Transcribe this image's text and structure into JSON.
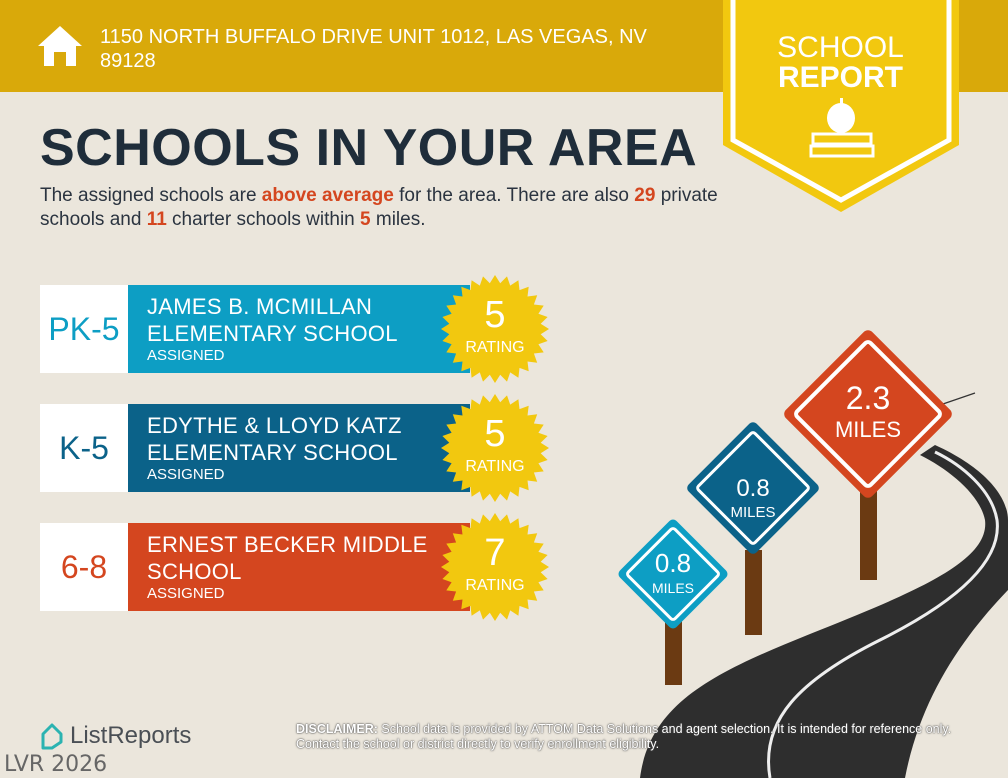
{
  "header": {
    "address": "1150 NORTH BUFFALO DRIVE UNIT 1012, LAS VEGAS, NV 89128",
    "icon": "home-icon"
  },
  "badge": {
    "line1": "SCHOOL",
    "line2": "REPORT",
    "icon": "apple-books-icon"
  },
  "title": "SCHOOLS IN YOUR AREA",
  "intro": {
    "p1": "The assigned schools are ",
    "h1": "above average",
    "p2": " for the area. There are also ",
    "h2": "29",
    "p3": " private schools and ",
    "h3": "11",
    "p4": " charter schools within ",
    "h4": "5",
    "p5": " miles."
  },
  "schools": [
    {
      "grade": "PK-5",
      "name": "JAMES B. MCMILLAN ELEMENTARY SCHOOL",
      "status": "ASSIGNED",
      "rating": "5",
      "rating_label": "RATING",
      "distance": "0.8",
      "unit": "MILES",
      "color": "#0d9ec4"
    },
    {
      "grade": "K-5",
      "name": "EDYTHE & LLOYD KATZ ELEMENTARY SCHOOL",
      "status": "ASSIGNED",
      "rating": "5",
      "rating_label": "RATING",
      "distance": "0.8",
      "unit": "MILES",
      "color": "#0b6289"
    },
    {
      "grade": "6-8",
      "name": "ERNEST BECKER MIDDLE SCHOOL",
      "status": "ASSIGNED",
      "rating": "7",
      "rating_label": "RATING",
      "distance": "2.3",
      "unit": "MILES",
      "color": "#d4461f"
    }
  ],
  "footer": {
    "logo": "ListReports",
    "watermark": "LVR 2026",
    "disclaimer_label": "DISCLAIMER:",
    "disclaimer": " School data is provided by ATTOM Data Solutions and agent selection. It is intended for reference only. Contact the school or district directly to verify enrollment eligibility."
  },
  "colors": {
    "header": "#d9a90a",
    "badge": "#f2c80f",
    "seal": "#f2c80f",
    "text": "#1f2d3a",
    "highlight": "#d4461f",
    "road": "#2e2e2e",
    "post": "#6b3a12"
  }
}
